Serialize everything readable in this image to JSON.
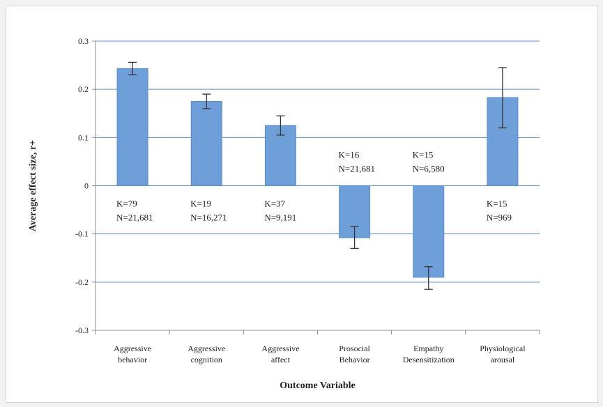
{
  "chart_data": {
    "type": "bar",
    "categories": [
      [
        "Aggressive",
        "behavior"
      ],
      [
        "Aggressive",
        "cognition"
      ],
      [
        "Aggressive",
        "affect"
      ],
      [
        "Prosocial",
        "Behavior"
      ],
      [
        "Empathy",
        "Desensitization"
      ],
      [
        "Physiological",
        "arousal"
      ]
    ],
    "values": [
      0.243,
      0.175,
      0.125,
      -0.108,
      -0.19,
      0.183
    ],
    "error_bars": [
      [
        0.23,
        0.256
      ],
      [
        0.16,
        0.19
      ],
      [
        0.105,
        0.145
      ],
      [
        -0.13,
        -0.085
      ],
      [
        -0.215,
        -0.168
      ],
      [
        0.12,
        0.245
      ]
    ],
    "annotations": [
      [
        "K=79",
        "N=21,681"
      ],
      [
        "K=19",
        "N=16,271"
      ],
      [
        "K=37",
        "N=9,191"
      ],
      [
        "K=16",
        "N=21,681"
      ],
      [
        "K=15",
        "N=6,580"
      ],
      [
        "K=15",
        "N=969"
      ]
    ],
    "yticks": [
      "0.3",
      "0.2",
      "0.1",
      "0",
      "-0.1",
      "-0.2",
      "-0.3"
    ],
    "xlabel": "Outcome Variable",
    "ylabel": "Average effect size, r+",
    "ylim": [
      -0.3,
      0.3
    ],
    "grid": true,
    "colors": {
      "bar": "#6f9fd8",
      "bar_edge": "#5a8cc8",
      "grid": "#5b8ccf",
      "axis": "#8c8c8c",
      "text": "#222222"
    }
  }
}
